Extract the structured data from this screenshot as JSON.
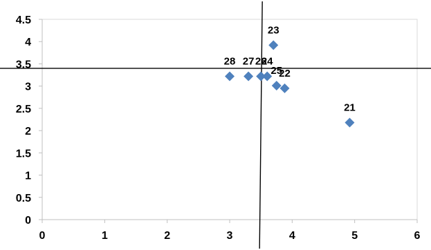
{
  "chart_data": {
    "type": "scatter",
    "title": "",
    "xlabel": "",
    "ylabel": "",
    "xlim": [
      0,
      6
    ],
    "ylim": [
      0,
      4.5
    ],
    "x_ticks": [
      "0",
      "1",
      "2",
      "3",
      "4",
      "5",
      "6"
    ],
    "y_ticks": [
      "0",
      "0.5",
      "1",
      "1.5",
      "2",
      "2.5",
      "3",
      "3.5",
      "4",
      "4.5"
    ],
    "grid": false,
    "legend": false,
    "marker": "diamond",
    "marker_color": "#4F81BD",
    "reference_lines": {
      "vertical_x": 3.5,
      "horizontal_y": 3.4
    },
    "points": [
      {
        "label": "28",
        "x": 3.0,
        "y": 3.22
      },
      {
        "label": "27",
        "x": 3.3,
        "y": 3.22
      },
      {
        "label": "26",
        "x": 3.5,
        "y": 3.22
      },
      {
        "label": "24",
        "x": 3.6,
        "y": 3.22
      },
      {
        "label": "23",
        "x": 3.7,
        "y": 3.92
      },
      {
        "label": "25",
        "x": 3.75,
        "y": 3.01
      },
      {
        "label": "22",
        "x": 3.88,
        "y": 2.95
      },
      {
        "label": "21",
        "x": 4.92,
        "y": 2.18
      }
    ]
  }
}
